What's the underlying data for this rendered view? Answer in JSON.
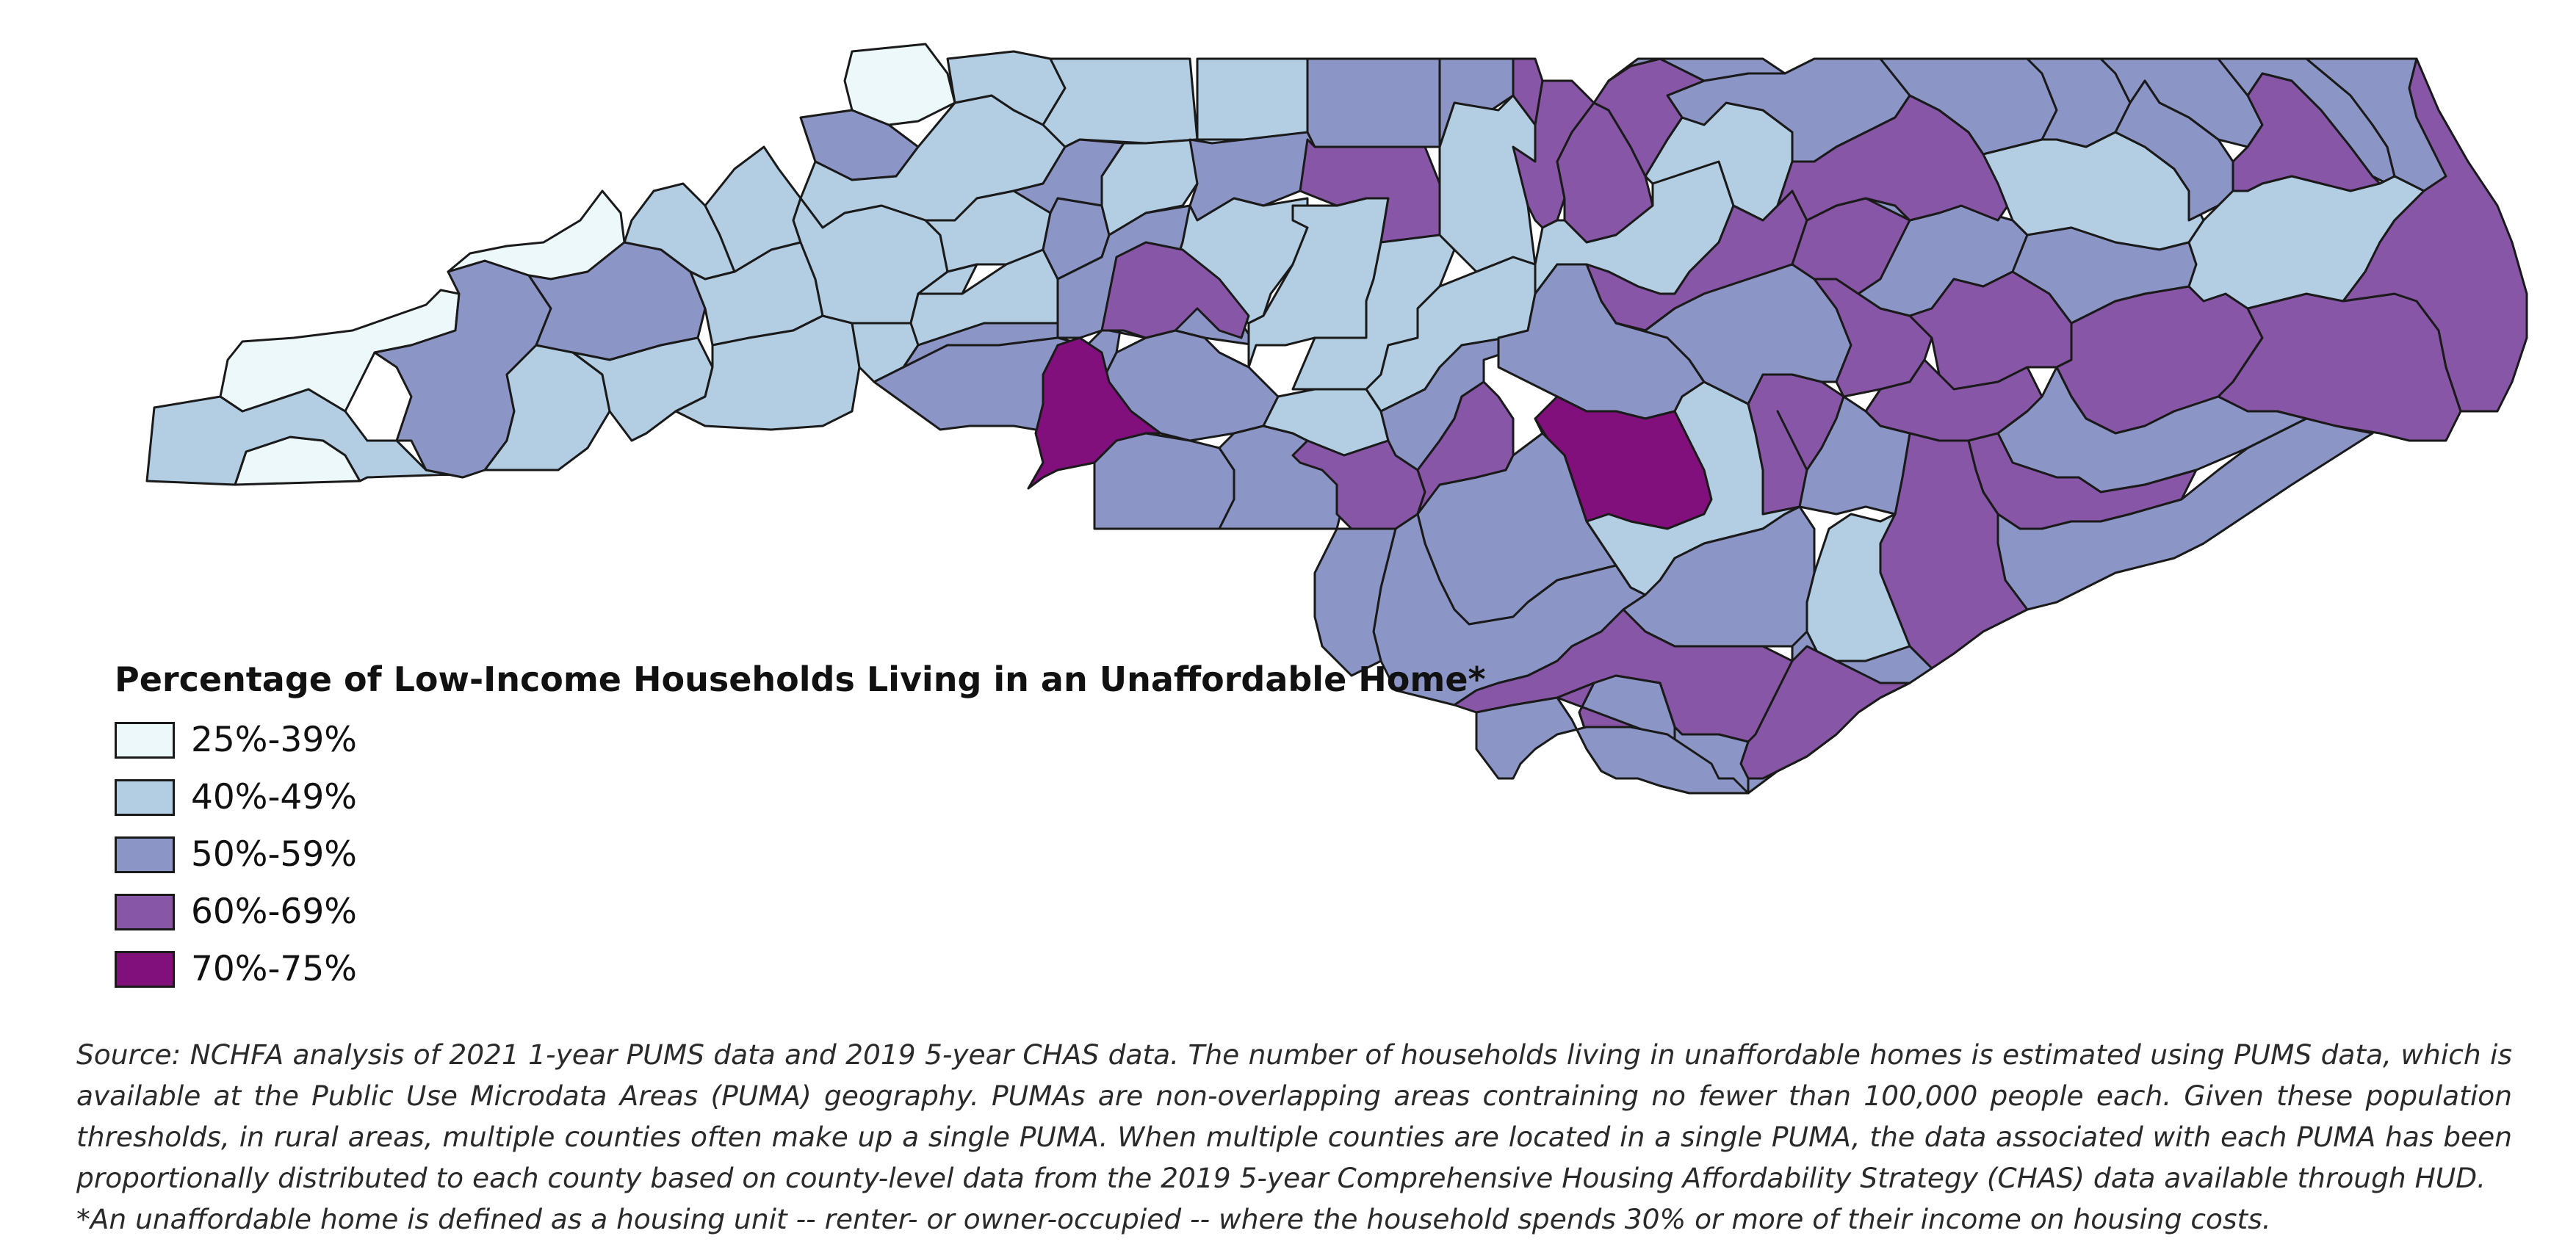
{
  "legend": {
    "title": "Percentage of Low-Income Households Living in an Unaffordable Home*",
    "classes": [
      {
        "label": "25%-39%",
        "color": "#edf8fb"
      },
      {
        "label": "40%-49%",
        "color": "#b3cde3"
      },
      {
        "label": "50%-59%",
        "color": "#8c96c6"
      },
      {
        "label": "60%-69%",
        "color": "#8856a7"
      },
      {
        "label": "70%-75%",
        "color": "#810f7c"
      }
    ]
  },
  "source_note": "Source: NCHFA analysis of 2021 1-year PUMS data and 2019 5-year CHAS data. The number of households living in unaffordable homes is estimated using PUMS data, which is available at the Public Use Microdata Areas (PUMA) geography. PUMAs are non-overlapping areas contraining no fewer than 100,000 people each. Given these population thresholds, in rural areas, multiple counties often make up a single PUMA. When multiple counties are located in a single PUMA, the data associated with each PUMA has been proportionally distributed to each county based on county-level data from the 2019 5-year Comprehensive Housing Affordability Strategy (CHAS) data available through HUD.",
  "footnote": "*An unaffordable home is defined as a housing unit -- renter- or owner-occupied -- where the household spends 30% or more of their income on housing costs."
}
